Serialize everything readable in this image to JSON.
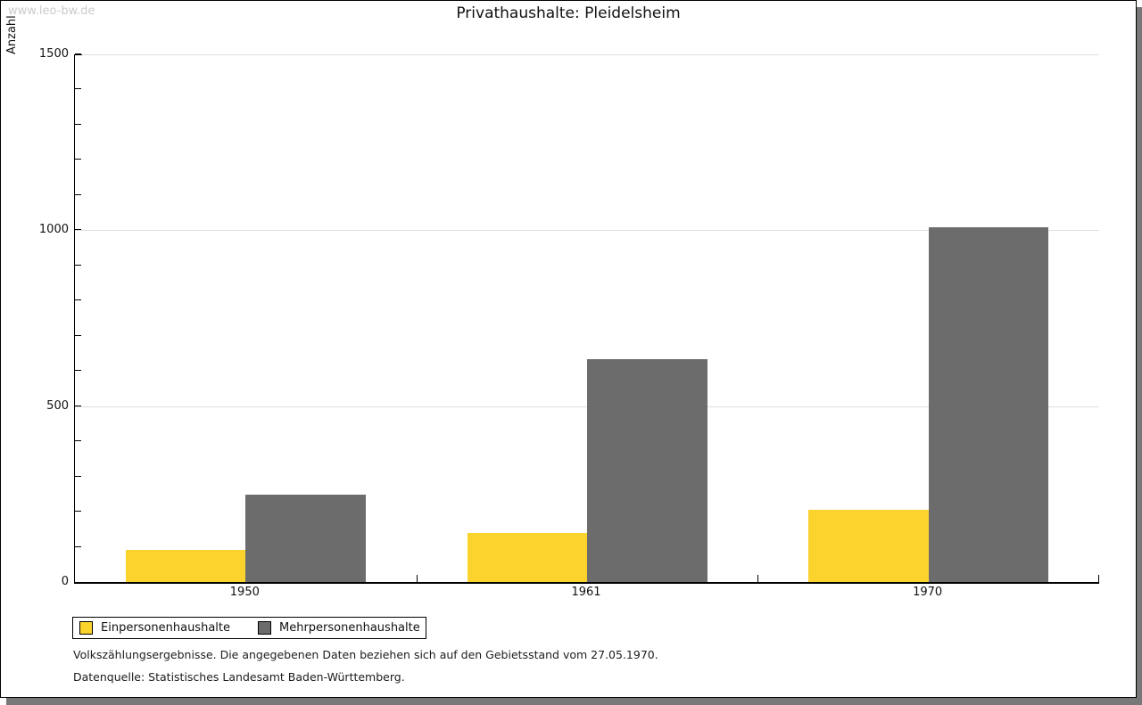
{
  "watermark": "www.leo-bw.de",
  "title": "Privathaushalte: Pleidelsheim",
  "chart_data": {
    "type": "bar",
    "title": "Privathaushalte: Pleidelsheim",
    "ylabel": "Anzahl",
    "xlabel": "",
    "ylim": [
      0,
      1500
    ],
    "yticks": [
      0,
      500,
      1000,
      1500
    ],
    "minor_tick_step": 100,
    "grid": true,
    "legend_position": "bottom-left",
    "categories": [
      "1950",
      "1961",
      "1970"
    ],
    "series": [
      {
        "name": "Einpersonenhaushalte",
        "color": "#FCD32D",
        "values": [
          91,
          139,
          205
        ]
      },
      {
        "name": "Mehrpersonenhaushalte",
        "color": "#6C6C6C",
        "values": [
          248,
          633,
          1008
        ]
      }
    ]
  },
  "footnotes": [
    "Volkszählungsergebnisse. Die angegebenen Daten beziehen sich auf den Gebietsstand vom 27.05.1970.",
    "Datenquelle: Statistisches Landesamt Baden-Württemberg."
  ]
}
